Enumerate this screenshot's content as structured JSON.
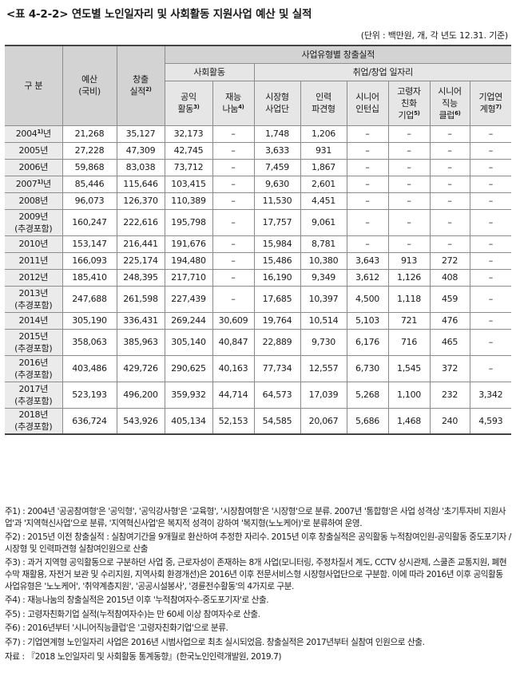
{
  "title": "<표 4-2-2> 연도별 노인일자리 및 사회활동 지원사업 예산 및 실적",
  "unit": "(단위 : 백만원, 개, 각 년도 12.31. 기준)",
  "header": {
    "division": "구 분",
    "budget": [
      "예산",
      "(국비)"
    ],
    "jobs": "창출",
    "jobs2": "실적",
    "jobs_note": "2)",
    "by_type": "사업유형별 창출실적",
    "social": "사회활동",
    "employment": "취업/창업 일자리",
    "columns": [
      {
        "l1": "공익",
        "l2": "활동",
        "note": "3)"
      },
      {
        "l1": "재능",
        "l2": "나눔",
        "note": "4)"
      },
      {
        "l1": "시장형",
        "l2": "사업단",
        "note": ""
      },
      {
        "l1": "인력",
        "l2": "파견형",
        "note": ""
      },
      {
        "l1": "시니어",
        "l2": "인턴십",
        "note": ""
      },
      {
        "l1": "고령자",
        "l2": "친화",
        "l3": "기업",
        "note": "5)"
      },
      {
        "l1": "시니어",
        "l2": "직능",
        "l3": "클럽",
        "note": "6)"
      },
      {
        "l1": "기업연",
        "l2": "계형",
        "note": "7)"
      }
    ]
  },
  "rows": [
    {
      "year": "2004",
      "note": "1)",
      "suffix": "년",
      "sub": "",
      "c": [
        "21,268",
        "35,127",
        "32,173",
        "–",
        "1,748",
        "1,206",
        "–",
        "–",
        "–",
        "–"
      ]
    },
    {
      "year": "2005년",
      "note": "",
      "suffix": "",
      "sub": "",
      "c": [
        "27,228",
        "47,309",
        "42,745",
        "–",
        "3,633",
        "931",
        "–",
        "–",
        "–",
        "–"
      ]
    },
    {
      "year": "2006년",
      "note": "",
      "suffix": "",
      "sub": "",
      "c": [
        "59,868",
        "83,038",
        "73,712",
        "–",
        "7,459",
        "1,867",
        "–",
        "–",
        "–",
        "–"
      ]
    },
    {
      "year": "2007",
      "note": "1)",
      "suffix": "년",
      "sub": "",
      "c": [
        "85,446",
        "115,646",
        "103,415",
        "–",
        "9,630",
        "2,601",
        "–",
        "–",
        "–",
        "–"
      ]
    },
    {
      "year": "2008년",
      "note": "",
      "suffix": "",
      "sub": "",
      "c": [
        "96,073",
        "126,370",
        "110,389",
        "–",
        "11,530",
        "4,451",
        "–",
        "–",
        "–",
        "–"
      ]
    },
    {
      "year": "2009년",
      "note": "",
      "suffix": "",
      "sub": "(추경포함)",
      "c": [
        "160,247",
        "222,616",
        "195,798",
        "–",
        "17,757",
        "9,061",
        "–",
        "–",
        "–",
        "–"
      ]
    },
    {
      "year": "2010년",
      "note": "",
      "suffix": "",
      "sub": "",
      "c": [
        "153,147",
        "216,441",
        "191,676",
        "–",
        "15,984",
        "8,781",
        "–",
        "–",
        "–",
        "–"
      ]
    },
    {
      "year": "2011년",
      "note": "",
      "suffix": "",
      "sub": "",
      "c": [
        "166,093",
        "225,174",
        "194,480",
        "–",
        "15,486",
        "10,380",
        "3,643",
        "913",
        "272",
        "–"
      ]
    },
    {
      "year": "2012년",
      "note": "",
      "suffix": "",
      "sub": "",
      "c": [
        "185,410",
        "248,395",
        "217,710",
        "–",
        "16,190",
        "9,349",
        "3,612",
        "1,126",
        "408",
        "–"
      ]
    },
    {
      "year": "2013년",
      "note": "",
      "suffix": "",
      "sub": "(추경포함)",
      "c": [
        "247,688",
        "261,598",
        "227,439",
        "–",
        "17,685",
        "10,397",
        "4,500",
        "1,118",
        "459",
        "–"
      ]
    },
    {
      "year": "2014년",
      "note": "",
      "suffix": "",
      "sub": "",
      "c": [
        "305,190",
        "336,431",
        "269,244",
        "30,609",
        "19,764",
        "10,514",
        "5,103",
        "721",
        "476",
        "–"
      ]
    },
    {
      "year": "2015년",
      "note": "",
      "suffix": "",
      "sub": "(추경포함)",
      "c": [
        "358,063",
        "385,963",
        "305,140",
        "40,847",
        "22,889",
        "9,730",
        "6,176",
        "716",
        "465",
        "–"
      ]
    },
    {
      "year": "2016년",
      "note": "",
      "suffix": "",
      "sub": "(추경포함)",
      "c": [
        "403,486",
        "429,726",
        "290,625",
        "40,163",
        "77,734",
        "12,557",
        "6,730",
        "1,545",
        "372",
        "–"
      ]
    },
    {
      "year": "2017년",
      "note": "",
      "suffix": "",
      "sub": "(추경포함)",
      "c": [
        "523,193",
        "496,200",
        "359,932",
        "44,714",
        "64,573",
        "17,039",
        "5,268",
        "1,100",
        "232",
        "3,342"
      ]
    },
    {
      "year": "2018년",
      "note": "",
      "suffix": "",
      "sub": "(추경포함)",
      "c": [
        "636,724",
        "543,926",
        "405,134",
        "52,153",
        "54,585",
        "20,067",
        "5,686",
        "1,468",
        "240",
        "4,593"
      ]
    }
  ],
  "notes": [
    "주1) : 2004년 '공공참여형'은 '공익형', '공익강사형'은 '교육형', '시장참여형'은 '시장형'으로 분류. 2007년 '통합형'은 사업 성격상 '초기투자비 지원사업'과 '지역혁신사업'으로 분류, '지역혁신사업'은 복지적 성격이 강하여 '복지형(노노케어)'로 분류하여 운영.",
    "주2) : 2015년 이전 창출실적 : 실참여기간을 9개월로 환산하여 추정한 자리수. 2015년 이후 창출실적은 공익활동 누적참여인원-공익활동 중도포기자 / 시장형 및 인력파견형 실참여인원으로 산출",
    "주3) : 과거 지역형 공익활동으로 구분하던 사업 중, 근로자성이 존재하는 8개 사업(모니터링, 주정차질서 계도, CCTV 상시관제, 스쿨존 교통지원, 폐현수막 재활용, 자전거 보관 및 수리지원, 지역사회 환경개선)은 2016년 이후 전문서비스형 시장형사업단으로 구분함. 이에 따라 2016년 이후 공익활동 사업유형은 '노노케어', '취약계층지원', '공공시설봉사', '경륜전수활동'의 4가지로 구분.",
    "주4) : 재능나눔의 창출실적은 2015년 이후 '누적참여자수-중도포기자'로 산출.",
    "주5) : 고령자친화기업 실적(누적참여자수)는 만 60세 이상 참여자수로 산출.",
    "주6) : 2016년부터 '시니어직능클럽'은 '고령자친화기업'으로 분류.",
    "주7) : 기업연계형 노인일자리 사업은 2016년 시범사업으로 최초 실시되었음. 창출실적은 2017년부터 실참여 인원으로 산출.",
    "자료 : 『2018 노인일자리 및 사회활동 통계동향』(한국노인인력개발원, 2019.7)"
  ]
}
